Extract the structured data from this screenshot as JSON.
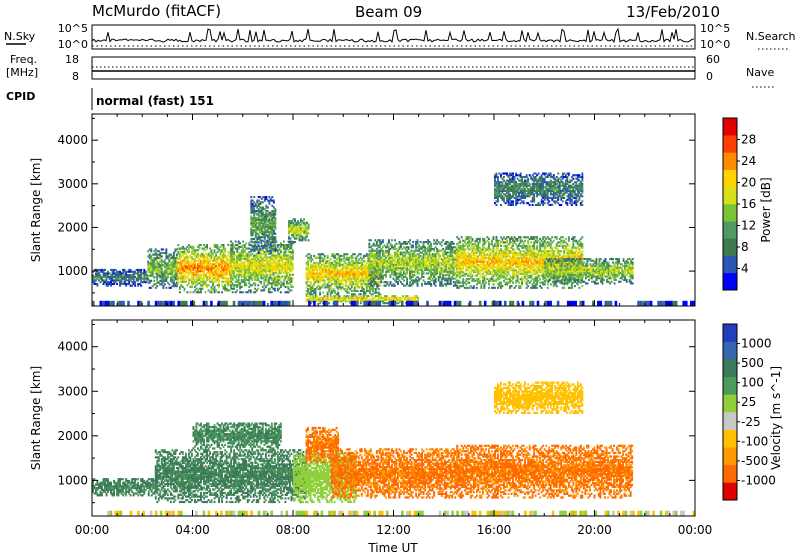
{
  "header": {
    "station": "McMurdo (fitACF)",
    "beam": "Beam 09",
    "date": "13/Feb/2010"
  },
  "panels_top": {
    "nsky_label": "N.Sky",
    "nsky_ticks": [
      "10^5",
      "10^0"
    ],
    "nsearch_label": "N.Search",
    "nsearch_ticks": [
      "10^5",
      "10^0"
    ],
    "freq_label_1": "Freq.",
    "freq_label_2": "[MHz]",
    "freq_ticks": [
      "18",
      "8"
    ],
    "nave_label": "Nave",
    "nave_ticks": [
      "60",
      "0"
    ],
    "cpid_label": "CPID",
    "cpid_value": "normal (fast) 151"
  },
  "chart_data": [
    {
      "type": "heatmap",
      "quantity": "power",
      "xlabel": "",
      "ylabel": "Slant Range [km]",
      "xlim": [
        0,
        24
      ],
      "ylim": [
        200,
        4600
      ],
      "yticks": [
        "1000",
        "2000",
        "3000",
        "4000"
      ],
      "colorbar_label": "Power [dB]",
      "colorbar_ticks": [
        "4",
        "8",
        "12",
        "16",
        "20",
        "24",
        "28"
      ],
      "colorbar_range": [
        0,
        32
      ],
      "colors": [
        "#0000ff",
        "#2a56b4",
        "#3f7a4f",
        "#4e9a62",
        "#7cc436",
        "#d7e01a",
        "#ffd200",
        "#ff8a00",
        "#ff4000",
        "#e00000"
      ],
      "regions": [
        {
          "t": [
            0.0,
            2.2
          ],
          "r": [
            650,
            1050
          ],
          "val": 7
        },
        {
          "t": [
            2.2,
            3.4
          ],
          "r": [
            600,
            1500
          ],
          "val": 12
        },
        {
          "t": [
            3.4,
            5.5
          ],
          "r": [
            500,
            1600
          ],
          "val": 20
        },
        {
          "t": [
            5.5,
            8.0
          ],
          "r": [
            500,
            1700
          ],
          "val": 16
        },
        {
          "t": [
            6.3,
            7.3
          ],
          "r": [
            1400,
            2700
          ],
          "val": 10
        },
        {
          "t": [
            7.8,
            8.6
          ],
          "r": [
            1650,
            2200
          ],
          "val": 14
        },
        {
          "t": [
            8.5,
            11.5
          ],
          "r": [
            450,
            1400
          ],
          "val": 18
        },
        {
          "t": [
            11.0,
            14.5
          ],
          "r": [
            650,
            1700
          ],
          "val": 14
        },
        {
          "t": [
            14.5,
            19.5
          ],
          "r": [
            600,
            1800
          ],
          "val": 18
        },
        {
          "t": [
            18.0,
            21.5
          ],
          "r": [
            700,
            1300
          ],
          "val": 14
        },
        {
          "t": [
            16.0,
            19.5
          ],
          "r": [
            2500,
            3250
          ],
          "val": 8
        },
        {
          "t": [
            8.5,
            13.0
          ],
          "r": [
            250,
            450
          ],
          "val": 18
        }
      ]
    },
    {
      "type": "heatmap",
      "quantity": "velocity",
      "xlabel": "Time UT",
      "ylabel": "Slant Range [km]",
      "xlim": [
        0,
        24
      ],
      "ylim": [
        200,
        4600
      ],
      "xticks": [
        "00:00",
        "04:00",
        "08:00",
        "12:00",
        "16:00",
        "20:00",
        "00:00"
      ],
      "yticks": [
        "1000",
        "2000",
        "3000",
        "4000"
      ],
      "colorbar_label": "Velocity [m s^-1]",
      "colorbar_ticks": [
        "1000",
        "500",
        "100",
        "25",
        "-25",
        "-100",
        "-500",
        "-1000"
      ],
      "colors": [
        "#1f3fbf",
        "#3566b0",
        "#3d7a5a",
        "#4c9a5c",
        "#8fcf3a",
        "#c8c8c8",
        "#ffc000",
        "#ff9a00",
        "#ff6a00",
        "#e00000"
      ],
      "regions": [
        {
          "t": [
            0.0,
            2.5
          ],
          "r": [
            650,
            1050
          ],
          "val": 300
        },
        {
          "t": [
            2.5,
            8.5
          ],
          "r": [
            500,
            1700
          ],
          "val": 300
        },
        {
          "t": [
            4.0,
            7.5
          ],
          "r": [
            1700,
            2300
          ],
          "val": 250
        },
        {
          "t": [
            8.0,
            10.5
          ],
          "r": [
            500,
            1600
          ],
          "val": 50
        },
        {
          "t": [
            8.5,
            9.8
          ],
          "r": [
            1400,
            2200
          ],
          "val": -300
        },
        {
          "t": [
            9.5,
            14.5
          ],
          "r": [
            600,
            1700
          ],
          "val": -300
        },
        {
          "t": [
            14.5,
            21.5
          ],
          "r": [
            600,
            1800
          ],
          "val": -300
        },
        {
          "t": [
            16.0,
            19.5
          ],
          "r": [
            2500,
            3200
          ],
          "val": -50
        }
      ]
    }
  ]
}
